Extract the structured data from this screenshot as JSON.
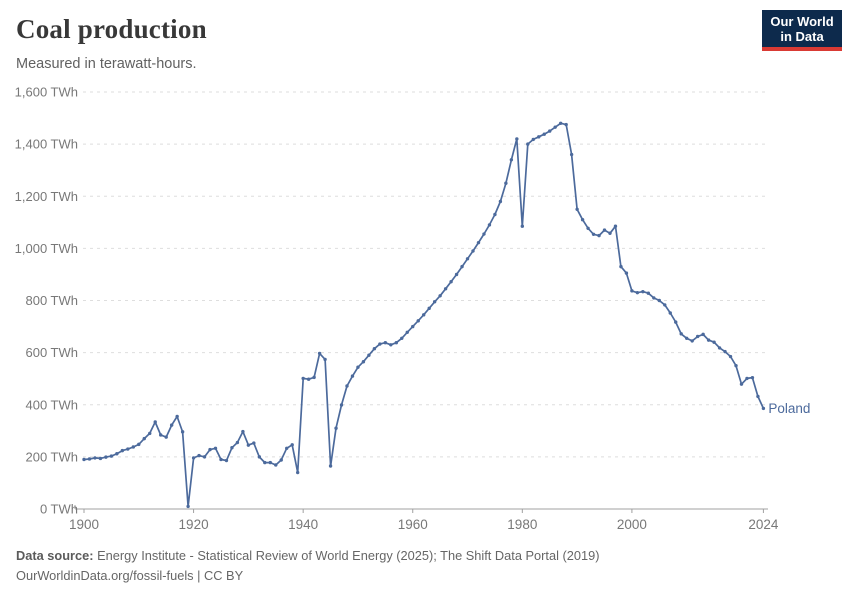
{
  "header": {
    "title": "Coal production",
    "subtitle": "Measured in terawatt-hours."
  },
  "logo": {
    "line1": "Our World",
    "line2": "in Data",
    "bg_color": "#0d2a4c",
    "accent_color": "#d93a34"
  },
  "footer": {
    "source_label": "Data source:",
    "source_text": " Energy Institute - Statistical Review of World Energy (2025); The Shift Data Portal (2019)",
    "license_text": "OurWorldinData.org/fossil-fuels | CC BY"
  },
  "chart_data": {
    "type": "line",
    "title": "Coal production",
    "ylabel": "",
    "xlabel": "",
    "unit": "TWh",
    "grid": "horizontal-dashed",
    "legend_position": "end-of-line",
    "xlim": [
      1900,
      2024
    ],
    "ylim": [
      0,
      1600
    ],
    "x_ticks": [
      1900,
      1920,
      1940,
      1960,
      1980,
      2000,
      2024
    ],
    "y_ticks": [
      0,
      200,
      400,
      600,
      800,
      1000,
      1200,
      1400,
      1600
    ],
    "y_tick_suffix": " TWh",
    "line_color": "#4c6a9c",
    "axis_color": "#a0a0a0",
    "gridline_color": "#dedede",
    "tick_label_color": "#787878",
    "series": [
      {
        "name": "Poland",
        "color": "#4c6a9c",
        "start_year": 1900,
        "end_year": 2024,
        "values": [
          190,
          192,
          196,
          194,
          199,
          203,
          212,
          224,
          230,
          238,
          248,
          270,
          290,
          334,
          284,
          276,
          322,
          355,
          296,
          10,
          196,
          205,
          200,
          228,
          233,
          190,
          186,
          235,
          255,
          297,
          245,
          253,
          200,
          178,
          178,
          169,
          188,
          233,
          246,
          140,
          501,
          498,
          505,
          597,
          574,
          165,
          310,
          399,
          472,
          510,
          544,
          565,
          590,
          615,
          633,
          638,
          630,
          638,
          655,
          678,
          700,
          722,
          745,
          770,
          795,
          818,
          845,
          872,
          900,
          930,
          960,
          990,
          1022,
          1055,
          1090,
          1130,
          1180,
          1250,
          1340,
          1420,
          1085,
          1400,
          1418,
          1428,
          1438,
          1450,
          1465,
          1480,
          1475,
          1360,
          1150,
          1110,
          1077,
          1054,
          1049,
          1070,
          1058,
          1085,
          930,
          905,
          837,
          830,
          834,
          828,
          810,
          800,
          783,
          752,
          717,
          672,
          655,
          645,
          662,
          670,
          648,
          640,
          618,
          604,
          585,
          550,
          479,
          501,
          504,
          432,
          386
        ]
      }
    ]
  }
}
